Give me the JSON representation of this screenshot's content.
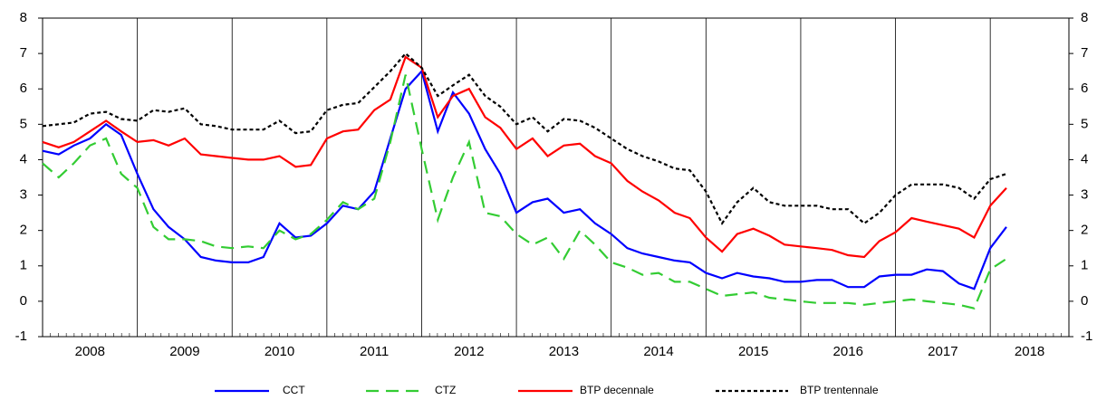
{
  "chart_data": {
    "type": "line",
    "x": [
      2008,
      2008.17,
      2008.33,
      2008.5,
      2008.67,
      2008.83,
      2009,
      2009.17,
      2009.33,
      2009.5,
      2009.67,
      2009.83,
      2010,
      2010.17,
      2010.33,
      2010.5,
      2010.67,
      2010.83,
      2011,
      2011.17,
      2011.33,
      2011.5,
      2011.67,
      2011.83,
      2012,
      2012.17,
      2012.33,
      2012.5,
      2012.67,
      2012.83,
      2013,
      2013.17,
      2013.33,
      2013.5,
      2013.67,
      2013.83,
      2014,
      2014.17,
      2014.33,
      2014.5,
      2014.67,
      2014.83,
      2015,
      2015.17,
      2015.33,
      2015.5,
      2015.67,
      2015.83,
      2016,
      2016.17,
      2016.33,
      2016.5,
      2016.67,
      2016.83,
      2017,
      2017.17,
      2017.33,
      2017.5,
      2017.67,
      2017.83,
      2018,
      2018.17
    ],
    "series": [
      {
        "name": "CCT",
        "color": "#0000ff",
        "dash": "none",
        "values": [
          4.25,
          4.15,
          4.4,
          4.6,
          5.0,
          4.7,
          3.6,
          2.6,
          2.1,
          1.75,
          1.25,
          1.15,
          1.1,
          1.1,
          1.25,
          2.2,
          1.8,
          1.85,
          2.2,
          2.7,
          2.6,
          3.1,
          4.6,
          6.0,
          6.5,
          4.8,
          5.9,
          5.3,
          4.3,
          3.6,
          2.5,
          2.8,
          2.9,
          2.5,
          2.6,
          2.2,
          1.9,
          1.5,
          1.35,
          1.25,
          1.15,
          1.1,
          0.8,
          0.65,
          0.8,
          0.7,
          0.65,
          0.55,
          0.55,
          0.6,
          0.6,
          0.4,
          0.4,
          0.7,
          0.75,
          0.75,
          0.9,
          0.85,
          0.5,
          0.35,
          1.5,
          2.1
        ]
      },
      {
        "name": "CTZ",
        "color": "#33cc33",
        "dash": "14 8",
        "values": [
          3.9,
          3.5,
          3.9,
          4.4,
          4.6,
          3.6,
          3.2,
          2.1,
          1.75,
          1.75,
          1.7,
          1.55,
          1.5,
          1.55,
          1.5,
          2.0,
          1.75,
          1.9,
          2.3,
          2.8,
          2.6,
          2.9,
          4.5,
          6.4,
          4.3,
          2.3,
          3.5,
          4.5,
          2.5,
          2.4,
          1.9,
          1.6,
          1.8,
          1.2,
          2.0,
          1.6,
          1.1,
          0.95,
          0.75,
          0.8,
          0.55,
          0.55,
          0.35,
          0.15,
          0.2,
          0.25,
          0.1,
          0.05,
          0.0,
          -0.05,
          -0.05,
          -0.05,
          -0.1,
          -0.05,
          0.0,
          0.05,
          0.0,
          -0.05,
          -0.1,
          -0.2,
          0.9,
          1.2
        ]
      },
      {
        "name": "BTP decennale",
        "color": "#ff0000",
        "dash": "none",
        "values": [
          4.5,
          4.35,
          4.5,
          4.8,
          5.1,
          4.8,
          4.5,
          4.55,
          4.4,
          4.6,
          4.15,
          4.1,
          4.05,
          4.0,
          4.0,
          4.1,
          3.8,
          3.85,
          4.6,
          4.8,
          4.85,
          5.4,
          5.7,
          6.9,
          6.6,
          5.2,
          5.8,
          6.0,
          5.2,
          4.9,
          4.3,
          4.6,
          4.1,
          4.4,
          4.45,
          4.1,
          3.9,
          3.4,
          3.1,
          2.85,
          2.5,
          2.35,
          1.8,
          1.4,
          1.9,
          2.05,
          1.85,
          1.6,
          1.55,
          1.5,
          1.45,
          1.3,
          1.25,
          1.7,
          1.95,
          2.35,
          2.25,
          2.15,
          2.05,
          1.8,
          2.7,
          3.2
        ]
      },
      {
        "name": "BTP trentennale",
        "color": "#000000",
        "dash": "4 3",
        "values": [
          4.95,
          5.0,
          5.05,
          5.3,
          5.35,
          5.15,
          5.1,
          5.4,
          5.35,
          5.45,
          5.0,
          4.95,
          4.85,
          4.85,
          4.85,
          5.1,
          4.75,
          4.8,
          5.4,
          5.55,
          5.6,
          6.05,
          6.5,
          7.0,
          6.6,
          5.8,
          6.1,
          6.4,
          5.8,
          5.5,
          5.0,
          5.2,
          4.8,
          5.15,
          5.1,
          4.9,
          4.6,
          4.3,
          4.1,
          3.95,
          3.75,
          3.7,
          3.1,
          2.2,
          2.8,
          3.2,
          2.8,
          2.7,
          2.7,
          2.7,
          2.6,
          2.6,
          2.2,
          2.5,
          3.0,
          3.3,
          3.3,
          3.3,
          3.2,
          2.9,
          3.45,
          3.6
        ]
      }
    ],
    "xlim": [
      2008,
      2018.83
    ],
    "xticks": [
      {
        "value": 2008,
        "label": "2008"
      },
      {
        "value": 2009,
        "label": "2009"
      },
      {
        "value": 2010,
        "label": "2010"
      },
      {
        "value": 2011,
        "label": "2011"
      },
      {
        "value": 2012,
        "label": "2012"
      },
      {
        "value": 2013,
        "label": "2013"
      },
      {
        "value": 2014,
        "label": "2014"
      },
      {
        "value": 2015,
        "label": "2015"
      },
      {
        "value": 2016,
        "label": "2016"
      },
      {
        "value": 2017,
        "label": "2017"
      },
      {
        "value": 2018,
        "label": "2018"
      }
    ],
    "ylim": [
      -1,
      8
    ],
    "yticks": [
      -1,
      0,
      1,
      2,
      3,
      4,
      5,
      6,
      7,
      8
    ],
    "y2lim": [
      -1,
      8
    ],
    "y2ticks": [
      -1,
      0,
      1,
      2,
      3,
      4,
      5,
      6,
      7,
      8
    ],
    "grid": true,
    "legend": "bottom"
  }
}
